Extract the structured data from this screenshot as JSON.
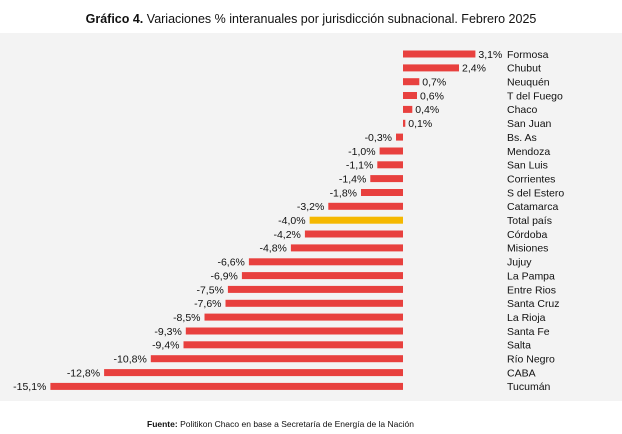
{
  "title": {
    "prefix": "Gráfico 4.",
    "text": "Variaciones % interanuales por jurisdicción subnacional. Febrero 2025"
  },
  "source": {
    "prefix": "Fuente:",
    "text": "Politikon Chaco en base a Secretaría de Energía de la Nación"
  },
  "colors": {
    "bar": "#e8403e",
    "highlight": "#f5b800",
    "panel": "#f3f3f3"
  },
  "chart_data": {
    "type": "bar",
    "orientation": "horizontal",
    "categories": [
      "Formosa",
      "Chubut",
      "Neuquén",
      "T del Fuego",
      "Chaco",
      "San Juan",
      "Bs. As",
      "Mendoza",
      "San Luis",
      "Corrientes",
      "S del Estero",
      "Catamarca",
      "Total país",
      "Córdoba",
      "Misiones",
      "Jujuy",
      "La Pampa",
      "Entre Rios",
      "Santa Cruz",
      "La Rioja",
      "Santa Fe",
      "Salta",
      "Río Negro",
      "CABA",
      "Tucumán"
    ],
    "values": [
      3.1,
      2.4,
      0.7,
      0.6,
      0.4,
      0.1,
      -0.3,
      -1.0,
      -1.1,
      -1.4,
      -1.8,
      -3.2,
      -4.0,
      -4.2,
      -4.8,
      -6.6,
      -6.9,
      -7.5,
      -7.6,
      -8.5,
      -9.3,
      -9.4,
      -10.8,
      -12.8,
      -15.1
    ],
    "data_labels": [
      "3,1%",
      "2,4%",
      "0,7%",
      "0,6%",
      "0,4%",
      "0,1%",
      "-0,3%",
      "-1,0%",
      "-1,1%",
      "-1,4%",
      "-1,8%",
      "-3,2%",
      "-4,0%",
      "-4,2%",
      "-4,8%",
      "-6,6%",
      "-6,9%",
      "-7,5%",
      "-7,6%",
      "-8,5%",
      "-9,3%",
      "-9,4%",
      "-10,8%",
      "-12,8%",
      "-15,1%"
    ],
    "highlight_category": "Total país",
    "xlim": [
      -15.1,
      3.1
    ],
    "grid": false,
    "legend": "none",
    "xlabel": "",
    "ylabel": ""
  }
}
